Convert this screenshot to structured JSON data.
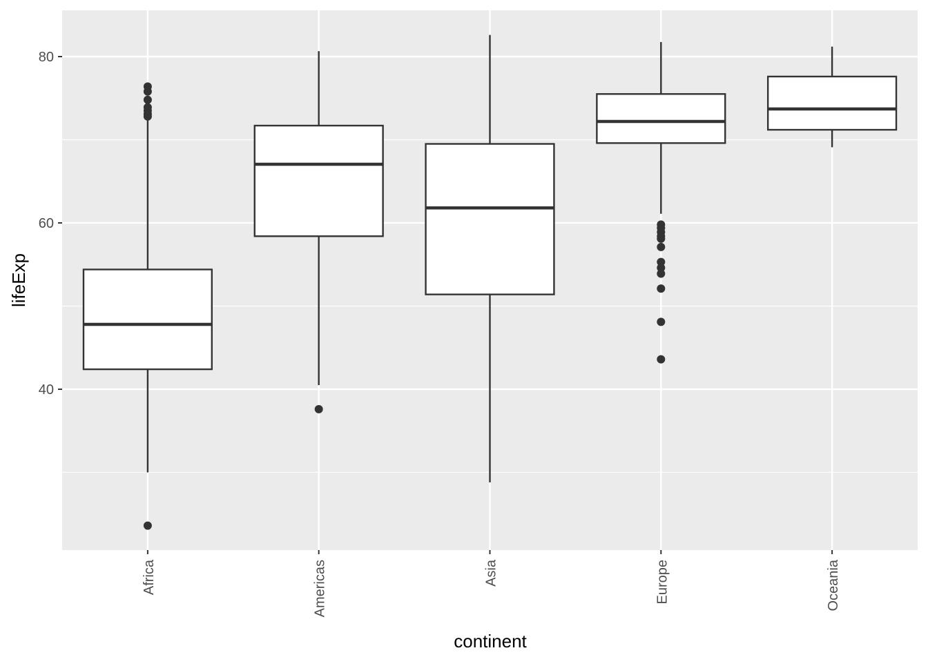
{
  "chart_data": {
    "type": "boxplot",
    "title": "",
    "xlabel": "continent",
    "ylabel": "lifeExp",
    "ylim": [
      20.66,
      85.56
    ],
    "yticks": [
      40,
      60,
      80
    ],
    "ytick_labels": [
      "40",
      "60",
      "80"
    ],
    "y_minor_gridlines": [
      30,
      50,
      70
    ],
    "grid": true,
    "categories": [
      "Africa",
      "Americas",
      "Asia",
      "Europe",
      "Oceania"
    ],
    "boxes": [
      {
        "name": "Africa",
        "whisker_low": 30.0,
        "q1": 42.4,
        "median": 47.8,
        "q3": 54.4,
        "whisker_high": 72.5,
        "outliers": [
          76.4,
          75.8,
          74.8,
          73.9,
          73.5,
          73.1,
          72.8,
          23.6
        ]
      },
      {
        "name": "Americas",
        "whisker_low": 40.5,
        "q1": 58.4,
        "median": 67.05,
        "q3": 71.7,
        "whisker_high": 80.65,
        "outliers": [
          37.6
        ]
      },
      {
        "name": "Asia",
        "whisker_low": 28.8,
        "q1": 51.4,
        "median": 61.8,
        "q3": 69.5,
        "whisker_high": 82.6,
        "outliers": []
      },
      {
        "name": "Europe",
        "whisker_low": 61.1,
        "q1": 69.6,
        "median": 72.2,
        "q3": 75.5,
        "whisker_high": 81.75,
        "outliers": [
          59.8,
          59.4,
          58.9,
          58.4,
          58.1,
          57.1,
          55.3,
          54.6,
          53.9,
          52.1,
          48.1,
          43.6
        ]
      },
      {
        "name": "Oceania",
        "whisker_low": 69.1,
        "q1": 71.2,
        "median": 73.7,
        "q3": 77.6,
        "whisker_high": 81.2,
        "outliers": []
      }
    ],
    "colors": {
      "panel": "#ebebeb",
      "grid": "#ffffff",
      "box_fill": "#ffffff",
      "box_line": "#333333",
      "axis_text": "#4d4d4d"
    }
  }
}
